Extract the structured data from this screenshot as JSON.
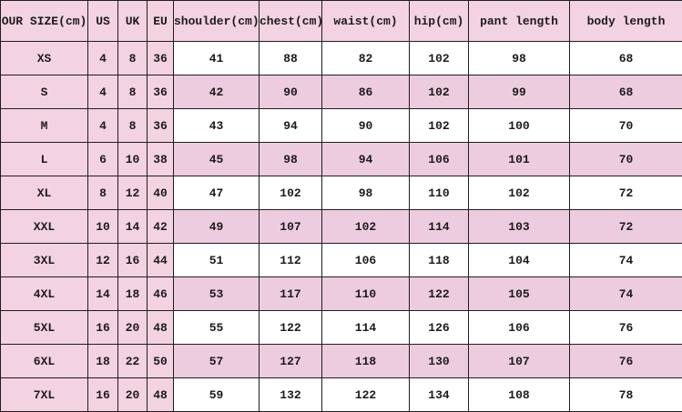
{
  "table": {
    "columns": [
      "OUR SIZE(cm)",
      "US",
      "UK",
      "EU",
      "shoulder(cm)",
      "chest(cm)",
      "waist(cm)",
      "hip(cm)",
      "pant length",
      "body length"
    ],
    "rows": [
      {
        "label": "XS",
        "values": [
          "4",
          "8",
          "36",
          "41",
          "88",
          "82",
          "102",
          "98",
          "68"
        ],
        "shaded": false
      },
      {
        "label": "S",
        "values": [
          "4",
          "8",
          "36",
          "42",
          "90",
          "86",
          "102",
          "99",
          "68"
        ],
        "shaded": true
      },
      {
        "label": "M",
        "values": [
          "4",
          "8",
          "36",
          "43",
          "94",
          "90",
          "102",
          "100",
          "70"
        ],
        "shaded": false
      },
      {
        "label": "L",
        "values": [
          "6",
          "10",
          "38",
          "45",
          "98",
          "94",
          "106",
          "101",
          "70"
        ],
        "shaded": true
      },
      {
        "label": "XL",
        "values": [
          "8",
          "12",
          "40",
          "47",
          "102",
          "98",
          "110",
          "102",
          "72"
        ],
        "shaded": false
      },
      {
        "label": "XXL",
        "values": [
          "10",
          "14",
          "42",
          "49",
          "107",
          "102",
          "114",
          "103",
          "72"
        ],
        "shaded": true
      },
      {
        "label": "3XL",
        "values": [
          "12",
          "16",
          "44",
          "51",
          "112",
          "106",
          "118",
          "104",
          "74"
        ],
        "shaded": false
      },
      {
        "label": "4XL",
        "values": [
          "14",
          "18",
          "46",
          "53",
          "117",
          "110",
          "122",
          "105",
          "74"
        ],
        "shaded": true
      },
      {
        "label": "5XL",
        "values": [
          "16",
          "20",
          "48",
          "55",
          "122",
          "114",
          "126",
          "106",
          "76"
        ],
        "shaded": false
      },
      {
        "label": "6XL",
        "values": [
          "18",
          "22",
          "50",
          "57",
          "127",
          "118",
          "130",
          "107",
          "76"
        ],
        "shaded": true
      },
      {
        "label": "7XL",
        "values": [
          "16",
          "20",
          "48",
          "59",
          "132",
          "122",
          "134",
          "108",
          "78"
        ],
        "shaded": false
      }
    ],
    "colors": {
      "header_pink": "#f3d2e2",
      "left_columns_pink": "#f3d2e2",
      "shaded_row_pink": "#edccdf",
      "unshaded_white": "#ffffff",
      "border_black": "#1f1f1f",
      "text_black": "#1b1b1b",
      "highlight_green": "#4d7d45"
    }
  }
}
